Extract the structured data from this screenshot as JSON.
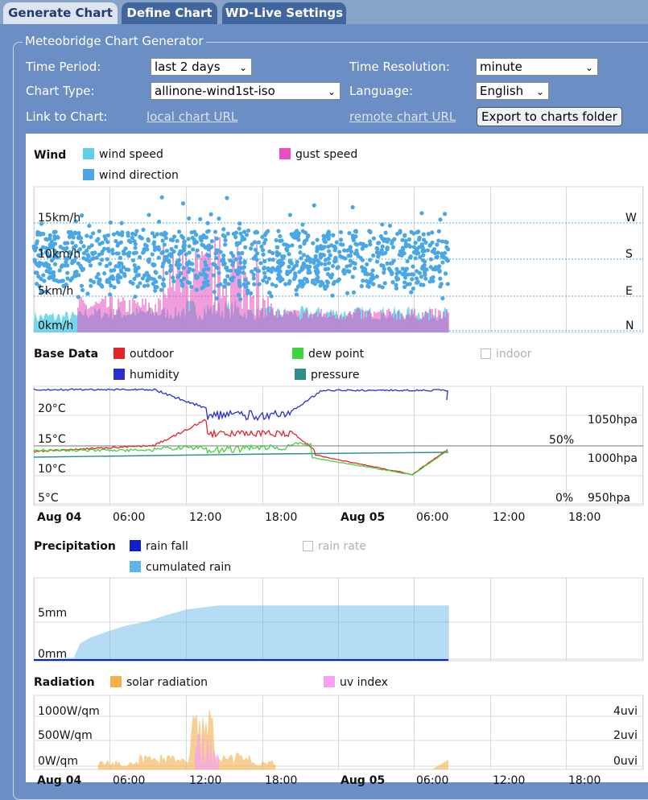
{
  "tabs": [
    {
      "label": "Generate Chart"
    },
    {
      "label": "Define Chart"
    },
    {
      "label": "WD-Live Settings"
    }
  ],
  "form": {
    "legend": "Meteobridge Chart Generator",
    "time_period_label": "Time Period:",
    "time_period_value": "last 2 days",
    "time_resolution_label": "Time Resolution:",
    "time_resolution_value": "minute",
    "chart_type_label": "Chart Type:",
    "chart_type_value": "allinone-wind1st-iso",
    "language_label": "Language:",
    "language_value": "English",
    "link_label": "Link to Chart:",
    "local_url": "local chart URL",
    "remote_url": "remote chart URL",
    "export_label": "Export to charts folder"
  },
  "wind": {
    "title": "Wind",
    "legend": [
      "wind speed",
      "gust speed",
      "wind direction"
    ],
    "y_ticks": [
      "15km/h",
      "10km/h",
      "5km/h",
      "0km/h"
    ],
    "dir_ticks": [
      "W",
      "S",
      "E",
      "N"
    ]
  },
  "base": {
    "title": "Base Data",
    "legend": [
      "outdoor",
      "dew point",
      "indoor",
      "humidity",
      "pressure"
    ],
    "temp_ticks": [
      "20°C",
      "15°C",
      "10°C",
      "5°C"
    ],
    "hum_ticks": [
      "50%",
      "0%"
    ],
    "press_ticks": [
      "1050hpa",
      "1000hpa",
      "950hpa"
    ]
  },
  "x_axis": [
    "Aug 04",
    "06:00",
    "12:00",
    "18:00",
    "Aug 05",
    "06:00",
    "12:00",
    "18:00"
  ],
  "precip": {
    "title": "Precipitation",
    "legend": [
      "rain fall",
      "rain rate",
      "cumulated rain"
    ],
    "y_ticks": [
      "5mm",
      "0mm"
    ]
  },
  "radiation": {
    "title": "Radiation",
    "legend": [
      "solar radiation",
      "uv index"
    ],
    "y_ticks": [
      "1000W/qm",
      "500W/qm",
      "0W/qm"
    ],
    "uv_ticks": [
      "4uvi",
      "2uvi",
      "0uvi"
    ]
  },
  "colors": {
    "wind_speed": "#5ed0e6",
    "gust": "#e94fc0",
    "wind_dir": "#4aa7e6",
    "outdoor": "#e8222a",
    "dew": "#3cd63c",
    "humidity": "#2a2fd0",
    "pressure": "#2c8f8a",
    "rain": "#1020c8",
    "cum_rain": "#5bb5ea",
    "solar": "#f5b04a",
    "uv": "#f5a0f0"
  },
  "chart_data": [
    {
      "type": "scatter",
      "title": "Wind",
      "x": [
        "Aug 04 00:00",
        "Aug 05 09:00"
      ],
      "series": [
        {
          "name": "wind direction",
          "note": "mostly S (180°) scattered between E and W"
        },
        {
          "name": "wind speed",
          "values_range_kmh": [
            0,
            4
          ]
        },
        {
          "name": "gust speed",
          "values_range_kmh": [
            0,
            14
          ]
        }
      ],
      "ylim": [
        0,
        18
      ]
    },
    {
      "type": "line",
      "title": "Base Data",
      "series": [
        {
          "name": "outdoor",
          "unit": "°C",
          "range": [
            9,
            19
          ]
        },
        {
          "name": "dew point",
          "unit": "°C",
          "range": [
            9,
            15.5
          ]
        },
        {
          "name": "humidity",
          "unit": "%",
          "range": [
            55,
            98
          ]
        },
        {
          "name": "pressure",
          "unit": "hpa",
          "range": [
            998,
            1005
          ]
        }
      ]
    },
    {
      "type": "area",
      "title": "Precipitation",
      "series": [
        {
          "name": "cumulated rain",
          "unit": "mm",
          "max": 6.5
        }
      ],
      "ylim": [
        0,
        8
      ]
    },
    {
      "type": "area",
      "title": "Radiation",
      "series": [
        {
          "name": "solar radiation",
          "unit": "W/qm",
          "max": 950
        },
        {
          "name": "uv index",
          "unit": "uvi",
          "max": 4
        }
      ]
    }
  ]
}
